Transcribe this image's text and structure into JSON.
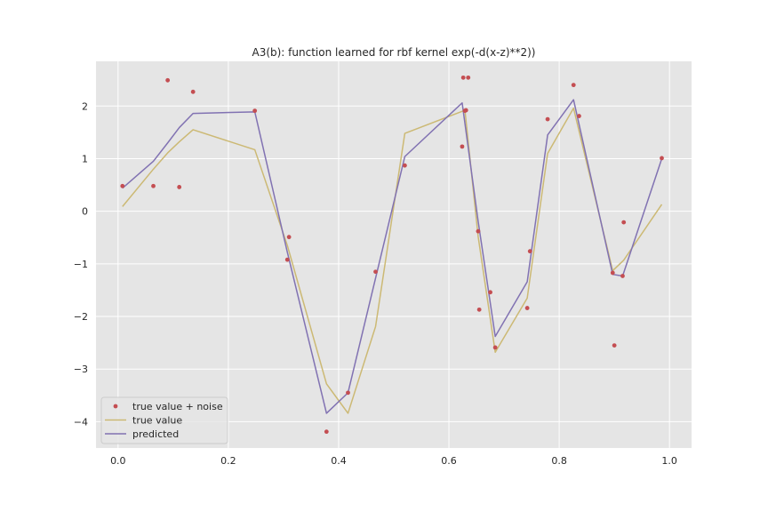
{
  "chart_data": {
    "type": "line",
    "title": "A3(b): function learned for rbf kernel exp(-d(x-z)**2))",
    "xlabel": "",
    "ylabel": "",
    "xlim": [
      -0.04,
      1.04
    ],
    "ylim": [
      -4.5,
      2.85
    ],
    "x_ticks": [
      0.0,
      0.2,
      0.4,
      0.6,
      0.8,
      1.0
    ],
    "x_tick_labels": [
      "0.0",
      "0.2",
      "0.4",
      "0.6",
      "0.8",
      "1.0"
    ],
    "y_ticks": [
      -4,
      -3,
      -2,
      -1,
      0,
      1,
      2
    ],
    "y_tick_labels": [
      "−4",
      "−3",
      "−2",
      "−1",
      "0",
      "1",
      "2"
    ],
    "grid": true,
    "legend_position": "lower-left",
    "series": [
      {
        "name": "true value + noise",
        "kind": "scatter",
        "color": "#c44e52",
        "x": [
          0.008,
          0.064,
          0.09,
          0.111,
          0.136,
          0.248,
          0.307,
          0.31,
          0.378,
          0.417,
          0.467,
          0.52,
          0.624,
          0.626,
          0.629,
          0.631,
          0.635,
          0.653,
          0.655,
          0.675,
          0.684,
          0.742,
          0.747,
          0.779,
          0.826,
          0.836,
          0.897,
          0.9,
          0.915,
          0.917,
          0.986
        ],
        "y": [
          0.48,
          0.48,
          2.49,
          0.46,
          2.27,
          1.91,
          -0.92,
          -0.49,
          -4.19,
          -3.45,
          -1.15,
          0.87,
          1.23,
          2.54,
          1.91,
          1.92,
          2.54,
          -0.38,
          -1.87,
          -1.54,
          -2.59,
          -1.84,
          -0.76,
          1.75,
          2.4,
          1.81,
          -1.17,
          -2.55,
          -1.23,
          -0.21,
          1.01
        ]
      },
      {
        "name": "true value",
        "kind": "line",
        "color": "#ccb974",
        "x": [
          0.008,
          0.064,
          0.09,
          0.111,
          0.136,
          0.248,
          0.307,
          0.378,
          0.417,
          0.467,
          0.52,
          0.629,
          0.653,
          0.684,
          0.742,
          0.779,
          0.826,
          0.897,
          0.917,
          0.986
        ],
        "y": [
          0.09,
          0.8,
          1.11,
          1.32,
          1.55,
          1.17,
          -0.65,
          -3.28,
          -3.84,
          -2.19,
          1.48,
          1.92,
          -0.48,
          -2.68,
          -1.65,
          1.1,
          1.96,
          -1.13,
          -0.93,
          0.13
        ]
      },
      {
        "name": "predicted",
        "kind": "line",
        "color": "#8172b2",
        "x": [
          0.008,
          0.064,
          0.09,
          0.111,
          0.136,
          0.248,
          0.307,
          0.378,
          0.417,
          0.52,
          0.624,
          0.653,
          0.684,
          0.742,
          0.779,
          0.826,
          0.897,
          0.915,
          0.986
        ],
        "y": [
          0.44,
          0.95,
          1.3,
          1.59,
          1.86,
          1.89,
          -0.78,
          -3.84,
          -3.45,
          1.04,
          2.06,
          -0.19,
          -2.38,
          -1.34,
          1.45,
          2.12,
          -1.2,
          -1.23,
          1.0
        ]
      }
    ]
  },
  "colors": {
    "plot_background": "#e5e5e5",
    "grid": "#ffffff",
    "text": "#262626"
  }
}
